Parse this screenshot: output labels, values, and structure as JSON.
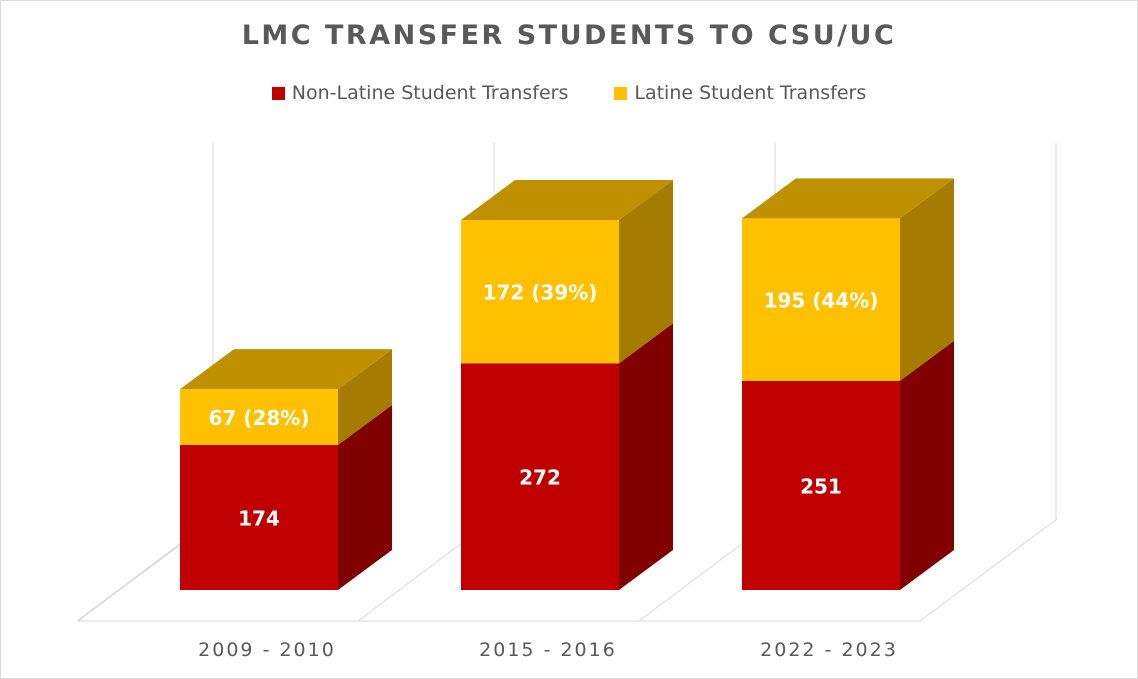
{
  "chart_data": {
    "type": "bar",
    "stacked": true,
    "three_d": true,
    "title": "LMC TRANSFER STUDENTS TO CSU/UC",
    "categories": [
      "2009 - 2010",
      "2015 - 2016",
      "2022 - 2023"
    ],
    "series": [
      {
        "name": "Non-Latine Student Transfers",
        "values": [
          174,
          272,
          251
        ],
        "data_labels": [
          "174",
          "272",
          "251"
        ],
        "color": "#C00000",
        "side_color": "#800000"
      },
      {
        "name": "Latine Student Transfers",
        "values": [
          67,
          172,
          195
        ],
        "data_labels": [
          "67 (28%)",
          "172 (39%)",
          "195 (44%)"
        ],
        "color": "#FFC000",
        "side_color": "#A67C00",
        "top_color": "#BF9000"
      }
    ],
    "legend_position": "top",
    "grid": true,
    "xlabel": "",
    "ylabel": ""
  }
}
